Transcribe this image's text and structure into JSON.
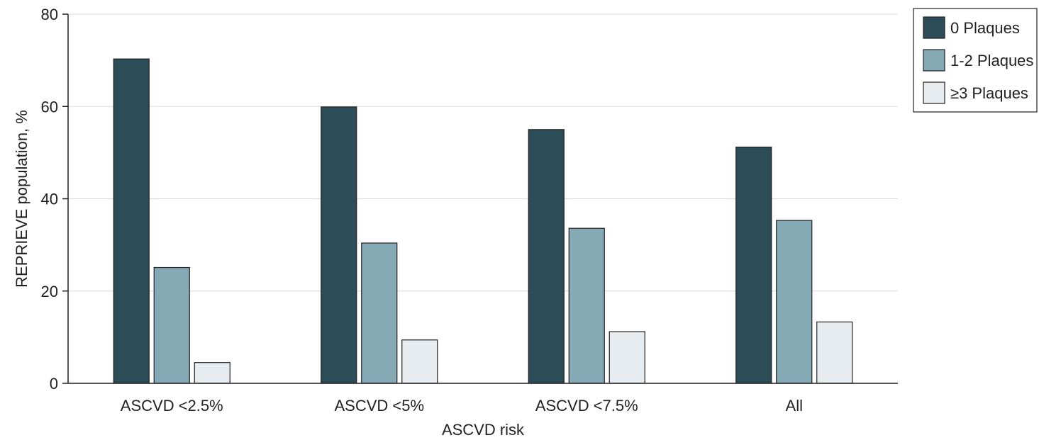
{
  "chart_data": {
    "type": "bar",
    "title": "",
    "xlabel": "ASCVD risk",
    "ylabel": "REPRIEVE population, %",
    "categories": [
      "ASCVD <2.5%",
      "ASCVD <5%",
      "ASCVD <7.5%",
      "All"
    ],
    "series": [
      {
        "name": "0 Plaques",
        "values": [
          70.3,
          59.9,
          55.0,
          51.2
        ]
      },
      {
        "name": "1-2 Plaques",
        "values": [
          25.1,
          30.4,
          33.6,
          35.3
        ]
      },
      {
        "name": "≥3 Plaques",
        "values": [
          4.5,
          9.4,
          11.2,
          13.3
        ]
      }
    ],
    "ylim": [
      0,
      80
    ],
    "yticks": [
      0,
      20,
      40,
      60,
      80
    ],
    "grid": true,
    "legend_position": "top-right",
    "colors": [
      "#2c4c57",
      "#86a9b6",
      "#e6ecef"
    ]
  }
}
